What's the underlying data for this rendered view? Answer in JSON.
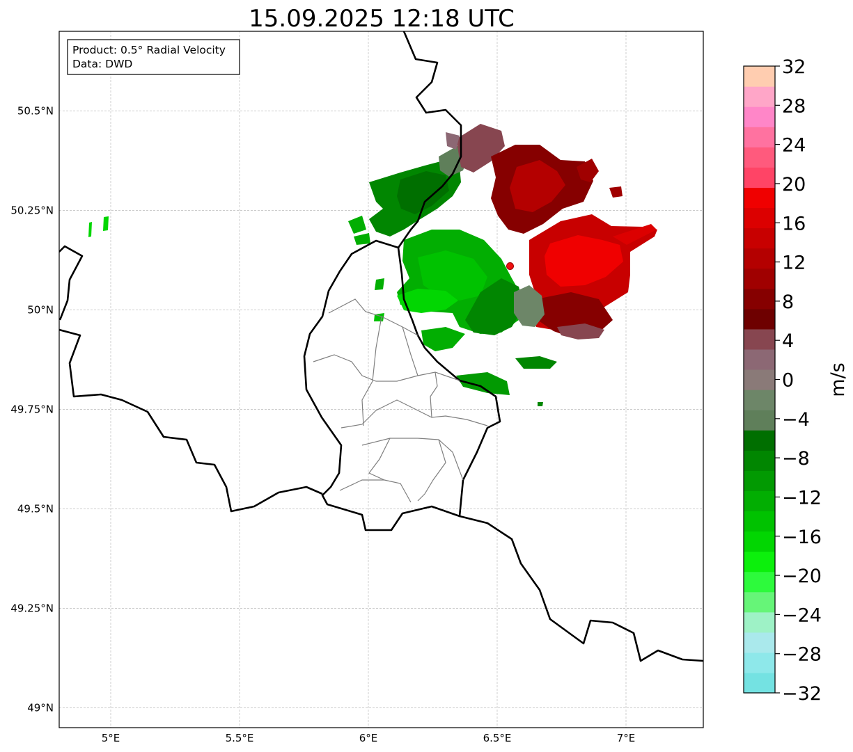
{
  "title": "15.09.2025 12:18 UTC",
  "info_box": {
    "product": "Product: 0.5° Radial Velocity",
    "data": "Data: DWD"
  },
  "map": {
    "lon_range": [
      4.8,
      7.3
    ],
    "lat_range": [
      48.95,
      50.7
    ],
    "lon_ticks": [
      {
        "value": 5.0,
        "label": "5°E"
      },
      {
        "value": 5.5,
        "label": "5.5°E"
      },
      {
        "value": 6.0,
        "label": "6°E"
      },
      {
        "value": 6.5,
        "label": "6.5°E"
      },
      {
        "value": 7.0,
        "label": "7°E"
      }
    ],
    "lat_ticks": [
      {
        "value": 49.0,
        "label": "49°N"
      },
      {
        "value": 49.25,
        "label": "49.25°N"
      },
      {
        "value": 49.5,
        "label": "49.5°N"
      },
      {
        "value": 49.75,
        "label": "49.75°N"
      },
      {
        "value": 50.0,
        "label": "50°N"
      },
      {
        "value": 50.25,
        "label": "50.25°N"
      },
      {
        "value": 50.5,
        "label": "50.5°N"
      }
    ],
    "grid": true,
    "radar_site": {
      "lon": 6.55,
      "lat": 50.11,
      "color": "#ee1111"
    }
  },
  "colorbar": {
    "label": "m/s",
    "min": -32,
    "max": 32,
    "ticks": [
      {
        "value": 32,
        "label": "32"
      },
      {
        "value": 28,
        "label": "28"
      },
      {
        "value": 24,
        "label": "24"
      },
      {
        "value": 20,
        "label": "20"
      },
      {
        "value": 16,
        "label": "16"
      },
      {
        "value": 12,
        "label": "12"
      },
      {
        "value": 8,
        "label": "8"
      },
      {
        "value": 4,
        "label": "4"
      },
      {
        "value": 0,
        "label": "0"
      },
      {
        "value": -4,
        "label": "−4"
      },
      {
        "value": -8,
        "label": "−8"
      },
      {
        "value": -12,
        "label": "−12"
      },
      {
        "value": -16,
        "label": "−16"
      },
      {
        "value": -20,
        "label": "−20"
      },
      {
        "value": -24,
        "label": "−24"
      },
      {
        "value": -28,
        "label": "−28"
      },
      {
        "value": -32,
        "label": "−32"
      }
    ],
    "colors": [
      "#74e2e2",
      "#8ee8ea",
      "#aae9ec",
      "#9ef2c6",
      "#66f578",
      "#2dfa3c",
      "#0cf00c",
      "#02d602",
      "#00c200",
      "#02ae02",
      "#029a02",
      "#018601",
      "#006f00",
      "#5f7f5a",
      "#6d8668",
      "#8a7a78",
      "#8c6874",
      "#874650",
      "#6e0000",
      "#860000",
      "#a00000",
      "#b40000",
      "#c80000",
      "#dc0000",
      "#f00000",
      "#ff4466",
      "#ff5a7d",
      "#ff72a0",
      "#ff86c8",
      "#ffa6c8",
      "#ffcdb0"
    ]
  }
}
